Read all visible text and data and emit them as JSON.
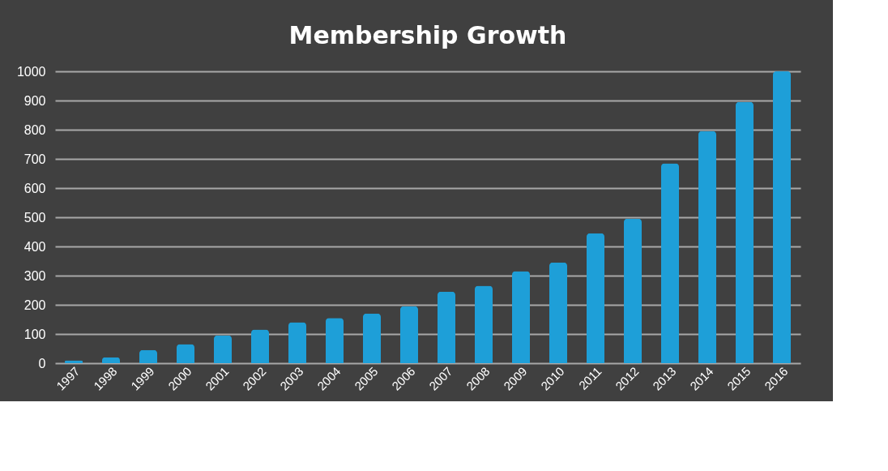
{
  "chart_data": {
    "type": "bar",
    "title": "Membership Growth",
    "categories": [
      "1997",
      "1998",
      "1999",
      "2000",
      "2001",
      "2002",
      "2003",
      "2004",
      "2005",
      "2006",
      "2007",
      "2008",
      "2009",
      "2010",
      "2011",
      "2012",
      "2013",
      "2014",
      "2015",
      "2016"
    ],
    "values": [
      10,
      20,
      45,
      65,
      95,
      115,
      140,
      155,
      170,
      195,
      245,
      265,
      315,
      345,
      445,
      495,
      685,
      795,
      895,
      1000
    ],
    "color": "#1e9fd8",
    "ylim": [
      0,
      1000
    ],
    "yticks": [
      0,
      100,
      200,
      300,
      400,
      500,
      600,
      700,
      800,
      900,
      1000
    ],
    "grid": "y"
  }
}
